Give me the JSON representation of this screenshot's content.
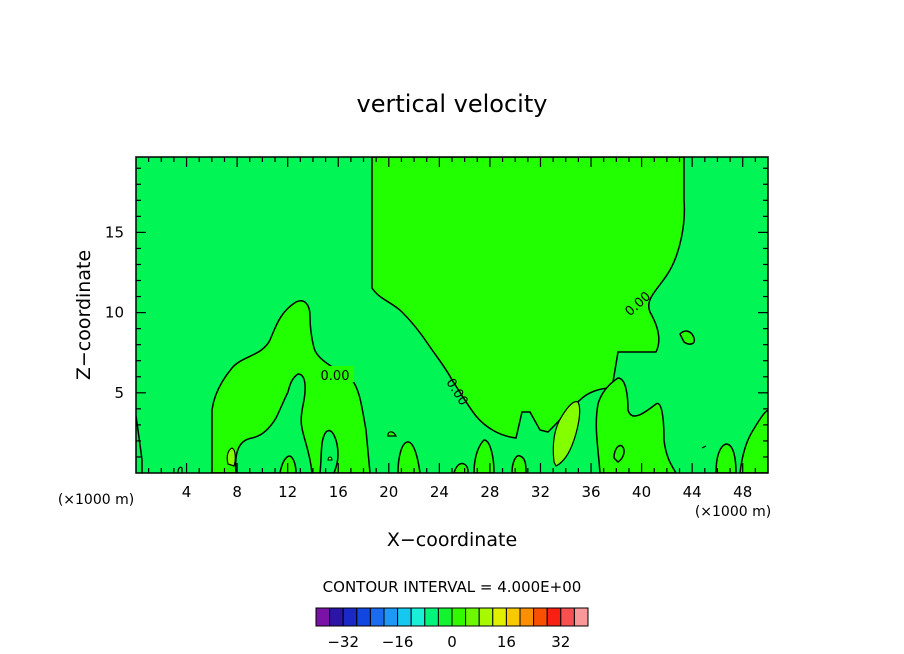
{
  "chart_data": {
    "type": "heatmap",
    "title": "vertical velocity",
    "xlabel": "X−coordinate",
    "ylabel": "Z−coordinate",
    "x_unit_left": "(×1000 m)",
    "x_unit_right": "(×1000 m)",
    "xlim": [
      0,
      50
    ],
    "ylim": [
      0,
      19.7
    ],
    "x_ticks": [
      4,
      8,
      12,
      16,
      20,
      24,
      28,
      32,
      36,
      40,
      44,
      48
    ],
    "y_ticks": [
      5,
      10,
      15
    ],
    "contour_labels": [
      "0.00",
      "0.00",
      "0.00"
    ],
    "contour_interval_text": "CONTOUR INTERVAL = 4.000E+00",
    "colorbar": {
      "levels": [
        -36,
        -32,
        -28,
        -24,
        -20,
        -16,
        -12,
        -8,
        -4,
        0,
        4,
        8,
        12,
        16,
        20,
        24,
        28,
        32,
        36
      ],
      "tick_labels": [
        "−32",
        "−16",
        "0",
        "16",
        "32"
      ],
      "tick_values": [
        -32,
        -16,
        0,
        16,
        32
      ],
      "colors": [
        "#7b12a8",
        "#2c14a6",
        "#1a28c6",
        "#1246e0",
        "#1a6cee",
        "#1e98f4",
        "#14c8f0",
        "#18f0d8",
        "#00f57a",
        "#12f52e",
        "#32f800",
        "#6cf800",
        "#a8f800",
        "#e0f000",
        "#f8c800",
        "#f89000",
        "#f85000",
        "#f82010",
        "#f85050",
        "#f89898"
      ]
    },
    "regions": {
      "background": "#00f555",
      "positive": "#22ff00",
      "strong_positive": "#84ff00"
    }
  }
}
